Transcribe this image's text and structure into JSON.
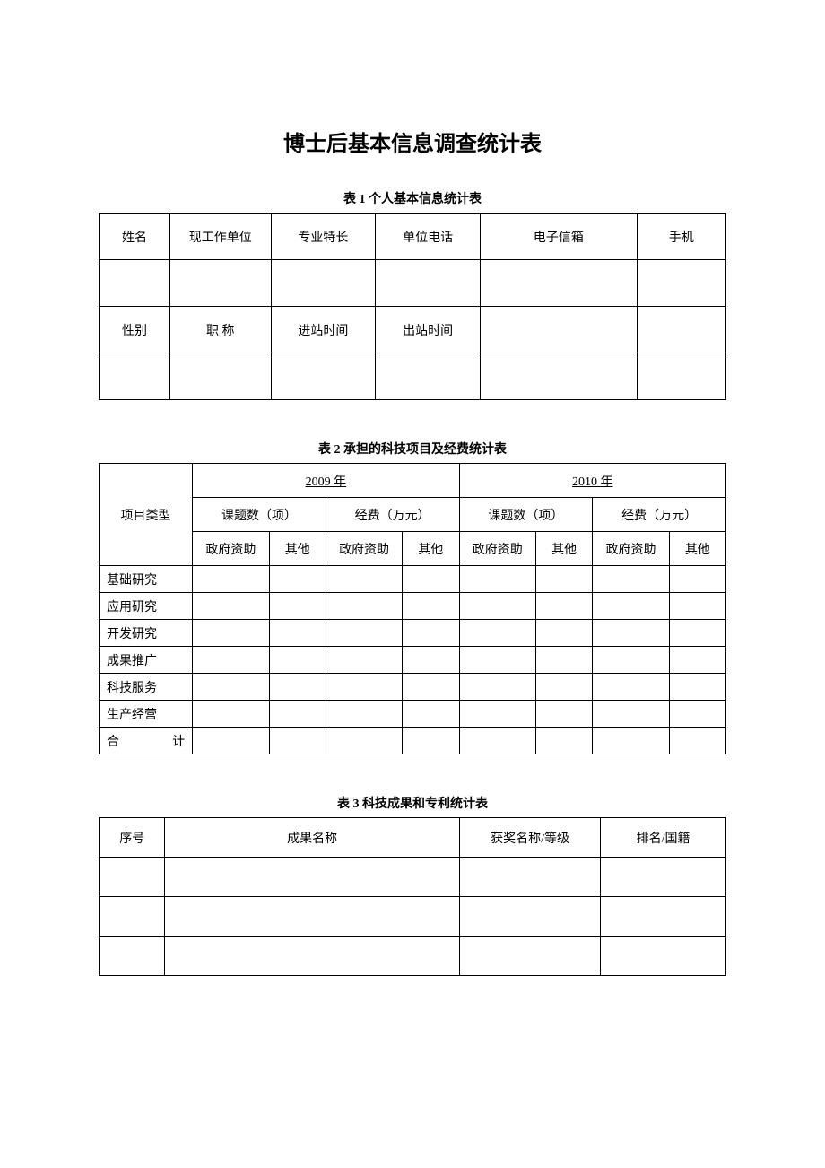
{
  "page": {
    "title": "博士后基本信息调查统计表"
  },
  "table1": {
    "caption": "表 1   个人基本信息统计表",
    "columns": [
      [
        "姓名",
        "现工作单位",
        "专业特长",
        "单位电话",
        "电子信箱",
        "手机"
      ],
      [
        "",
        "",
        "",
        "",
        "",
        ""
      ],
      [
        "性别",
        "职    称",
        "进站时间",
        "出站时间",
        "",
        ""
      ],
      [
        "",
        "",
        "",
        "",
        "",
        ""
      ]
    ]
  },
  "table2": {
    "caption": "表 2  承担的科技项目及经费统计表",
    "header": {
      "project_type": "项目类型",
      "year_2009": "2009 年",
      "year_2010": "2010 年",
      "topics": "课题数（项）",
      "funding": "经费（万元）",
      "gov": "政府资助",
      "other": "其他"
    },
    "rows": [
      "基础研究",
      "应用研究",
      "开发研究",
      "成果推广",
      "科技服务",
      "生产经营",
      "合       计"
    ]
  },
  "table3": {
    "caption": "表 3  科技成果和专利统计表",
    "columns": [
      "序号",
      "成果名称",
      "获奖名称/等级",
      "排名/国籍"
    ],
    "empty_rows": 3
  },
  "style": {
    "border_color": "#000000",
    "text_color": "#000000",
    "background_color": "#ffffff",
    "title_fontsize": 24,
    "caption_fontsize": 14,
    "body_fontsize": 14
  }
}
